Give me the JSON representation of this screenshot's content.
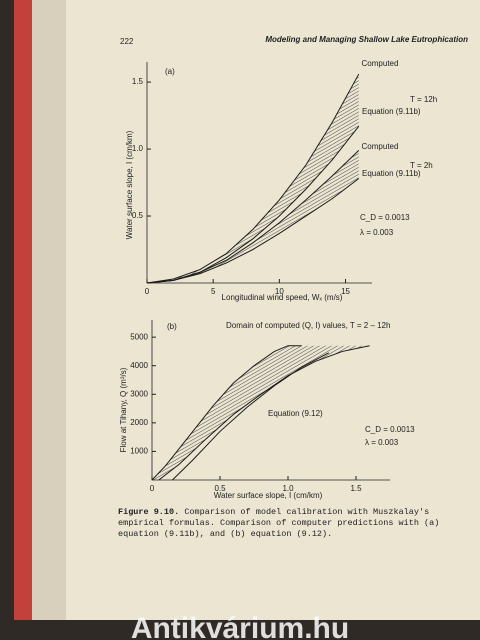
{
  "header": {
    "page_number": "222",
    "running_title": "Modeling and Managing Shallow Lake Eutrophication"
  },
  "chart_data": [
    {
      "type": "line",
      "panel": "(a)",
      "x_label": "Longitudinal wind speed, Wₓ (m/s)",
      "y_label": "Water surface slope, I (cm/km)",
      "xlim": [
        0,
        17
      ],
      "xticks": [
        0,
        5,
        10,
        15
      ],
      "ylim": [
        0,
        1.65
      ],
      "yticks": [
        {
          "value": 0.5,
          "label": "0.5"
        },
        {
          "value": 1.0,
          "label": "1.0"
        },
        {
          "value": 1.5,
          "label": "1.5"
        }
      ],
      "x": [
        0,
        2,
        4,
        6,
        8,
        10,
        12,
        14,
        16
      ],
      "series": [
        {
          "name": "Computed",
          "color": "#1a1a1a",
          "values": [
            0,
            0.03,
            0.1,
            0.22,
            0.4,
            0.62,
            0.88,
            1.2,
            1.56
          ]
        },
        {
          "name": "Equation (9.11b)",
          "color": "#1a1a1a",
          "values": [
            0,
            0.02,
            0.08,
            0.19,
            0.33,
            0.5,
            0.7,
            0.92,
            1.17
          ]
        },
        {
          "name": "Computed",
          "color": "#1a1a1a",
          "values": [
            0,
            0.02,
            0.08,
            0.17,
            0.3,
            0.45,
            0.62,
            0.8,
            0.99
          ]
        },
        {
          "name": "Equation (9.11b)",
          "color": "#1a1a1a",
          "values": [
            0,
            0.02,
            0.07,
            0.15,
            0.25,
            0.37,
            0.5,
            0.63,
            0.78
          ]
        }
      ],
      "annotations": [
        "T = 12h",
        "T = 2h",
        "C_D = 0.0013",
        "λ = 0.003"
      ]
    },
    {
      "type": "line",
      "panel": "(b)",
      "x_label": "Water surface slope, I (cm/km)",
      "y_label": "Flow at Tihany, Q (m³/s)",
      "xlim": [
        0,
        1.75
      ],
      "xticks": [
        0,
        {
          "value": 0.5,
          "label": "0.5"
        },
        {
          "value": 1.0,
          "label": "1.0"
        },
        {
          "value": 1.5,
          "label": "1.5"
        }
      ],
      "ylim": [
        0,
        5600
      ],
      "yticks": [
        1000,
        2000,
        3000,
        4000,
        5000
      ],
      "series": [
        {
          "color": "#1a1a1a",
          "x": [
            0,
            0.1,
            0.2,
            0.3,
            0.45,
            0.6,
            0.75,
            0.9,
            1.0,
            1.1
          ],
          "values": [
            0,
            500,
            1100,
            1700,
            2600,
            3400,
            4000,
            4500,
            4700,
            4700
          ]
        },
        {
          "color": "#1a1a1a",
          "x": [
            0.05,
            0.2,
            0.4,
            0.6,
            0.8,
            1.0,
            1.2,
            1.4,
            1.6
          ],
          "values": [
            0,
            550,
            1450,
            2300,
            3000,
            3650,
            4150,
            4500,
            4700
          ]
        },
        {
          "name": "Equation (9.12)",
          "color": "#1a1a1a",
          "x": [
            0.15,
            0.3,
            0.5,
            0.7,
            0.9,
            1.1,
            1.3
          ],
          "values": [
            0,
            700,
            1700,
            2550,
            3300,
            3950,
            4450
          ]
        }
      ],
      "annotations": [
        "Domain of computed (Q, I) values, T = 2 – 12h",
        "C_D = 0.0013",
        "λ = 0.003"
      ]
    }
  ],
  "caption": {
    "label": "Figure 9.10.",
    "text": "Comparison of model calibration with Muszkalay's empirical formulas. Comparison of computer predictions with (a) equation (9.11b), and (b) equation (9.12)."
  },
  "watermark": "Antikvárium.hu"
}
